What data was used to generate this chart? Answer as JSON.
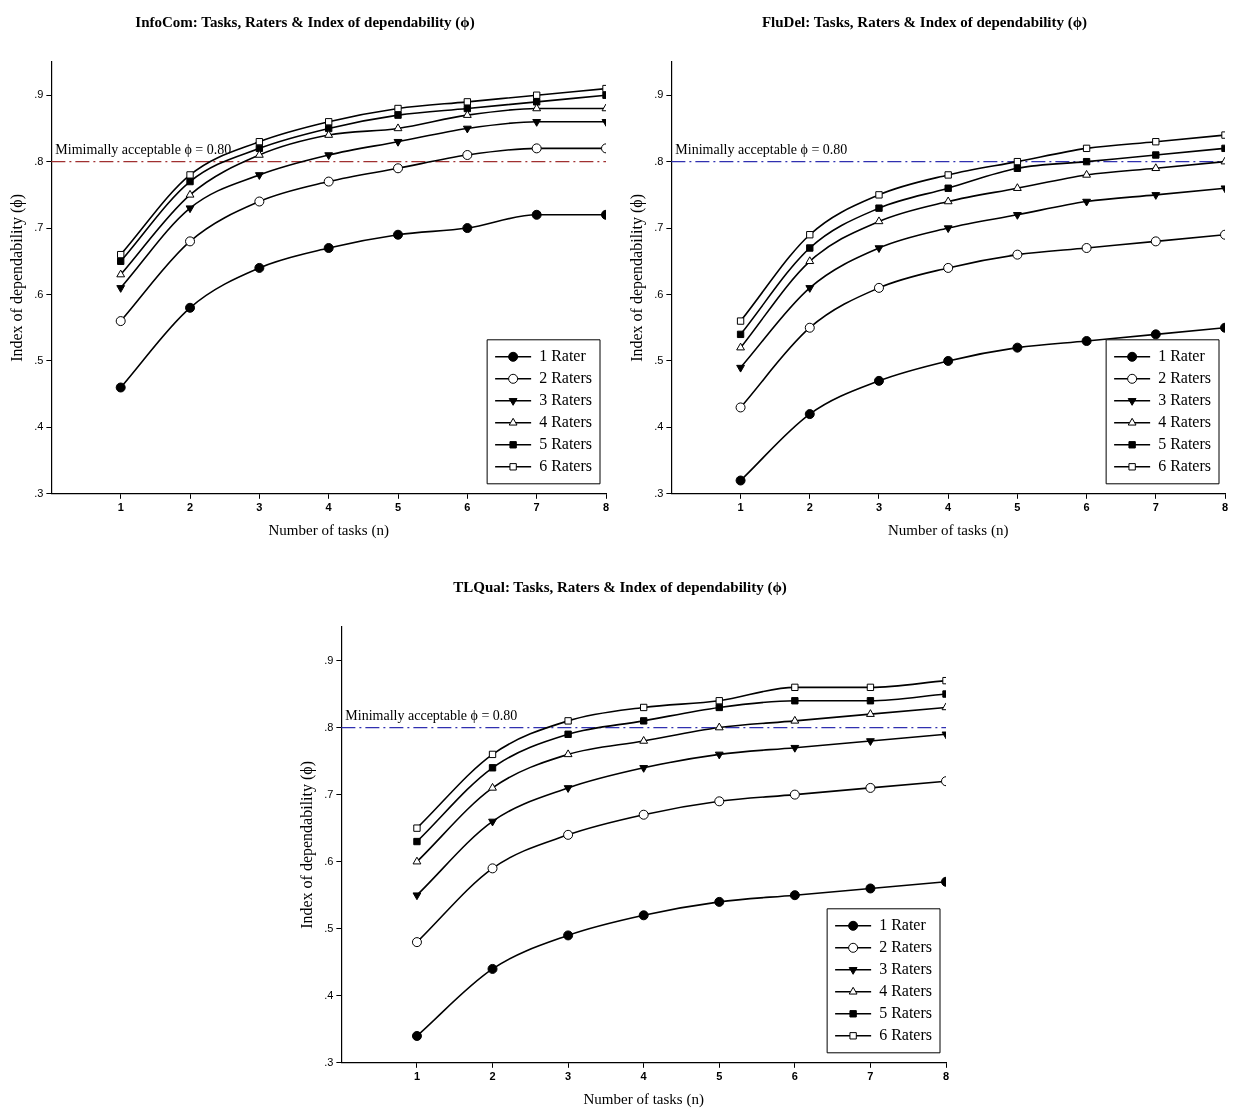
{
  "chart_data": [
    {
      "type": "line",
      "title": "InfoCom: Tasks, Raters & Index of dependability (ϕ)",
      "xlabel": "Number of tasks (n)",
      "ylabel": "Index of dependability (ϕ)",
      "x": [
        1,
        2,
        3,
        4,
        5,
        6,
        7,
        8
      ],
      "xlim": [
        0,
        8
      ],
      "xticks": [
        1,
        2,
        3,
        4,
        5,
        6,
        7,
        8
      ],
      "ylim": [
        0.3,
        0.95
      ],
      "yticks": [
        {
          "value": 0.3,
          "label": ".3"
        },
        {
          "value": 0.4,
          "label": ".4"
        },
        {
          "value": 0.5,
          "label": ".5"
        },
        {
          "value": 0.6,
          "label": ".6"
        },
        {
          "value": 0.7,
          "label": ".7"
        },
        {
          "value": 0.8,
          "label": ".8"
        },
        {
          "value": 0.9,
          "label": ".9"
        }
      ],
      "grid": false,
      "legend": "bottom right",
      "ref_lines": [
        {
          "axis": "y",
          "value": 0.8,
          "label": "Mimimally acceptable ϕ = 0.80",
          "color": "#a03030",
          "line_style": "dashed"
        }
      ],
      "series": [
        {
          "name": "1 Rater",
          "color": "#000000",
          "marker": "circle",
          "values": [
            0.46,
            0.58,
            0.64,
            0.67,
            0.69,
            0.7,
            0.72,
            0.72
          ]
        },
        {
          "name": "2 Raters",
          "color": "#000000",
          "marker": "circle-open",
          "values": [
            0.56,
            0.68,
            0.74,
            0.77,
            0.79,
            0.81,
            0.82,
            0.82
          ]
        },
        {
          "name": "3 Raters",
          "color": "#000000",
          "marker": "triangle-down",
          "values": [
            0.61,
            0.73,
            0.78,
            0.81,
            0.83,
            0.85,
            0.86,
            0.86
          ]
        },
        {
          "name": "4 Raters",
          "color": "#000000",
          "marker": "triangle-open",
          "values": [
            0.63,
            0.75,
            0.81,
            0.84,
            0.85,
            0.87,
            0.88,
            0.88
          ]
        },
        {
          "name": "5 Raters",
          "color": "#000000",
          "marker": "square",
          "values": [
            0.65,
            0.77,
            0.82,
            0.85,
            0.87,
            0.88,
            0.89,
            0.9
          ]
        },
        {
          "name": "6 Raters",
          "color": "#000000",
          "marker": "square-open",
          "values": [
            0.66,
            0.78,
            0.83,
            0.86,
            0.88,
            0.89,
            0.9,
            0.91
          ]
        }
      ]
    },
    {
      "type": "line",
      "title": "FluDel: Tasks, Raters & Index of dependability (ϕ)",
      "xlabel": "Number of tasks (n)",
      "ylabel": "Index of dependability (ϕ)",
      "x": [
        1,
        2,
        3,
        4,
        5,
        6,
        7,
        8
      ],
      "xlim": [
        0,
        8
      ],
      "xticks": [
        1,
        2,
        3,
        4,
        5,
        6,
        7,
        8
      ],
      "ylim": [
        0.3,
        0.95
      ],
      "yticks": [
        {
          "value": 0.3,
          "label": ".3"
        },
        {
          "value": 0.4,
          "label": ".4"
        },
        {
          "value": 0.5,
          "label": ".5"
        },
        {
          "value": 0.6,
          "label": ".6"
        },
        {
          "value": 0.7,
          "label": ".7"
        },
        {
          "value": 0.8,
          "label": ".8"
        },
        {
          "value": 0.9,
          "label": ".9"
        }
      ],
      "grid": false,
      "legend": "bottom right",
      "ref_lines": [
        {
          "axis": "y",
          "value": 0.8,
          "label": "Minimally acceptable ϕ = 0.80",
          "color": "#3030b0",
          "line_style": "dashed"
        }
      ],
      "series": [
        {
          "name": "1 Rater",
          "color": "#000000",
          "marker": "circle",
          "values": [
            0.32,
            0.42,
            0.47,
            0.5,
            0.52,
            0.53,
            0.54,
            0.55
          ]
        },
        {
          "name": "2 Raters",
          "color": "#000000",
          "marker": "circle-open",
          "values": [
            0.43,
            0.55,
            0.61,
            0.64,
            0.66,
            0.67,
            0.68,
            0.69
          ]
        },
        {
          "name": "3 Raters",
          "color": "#000000",
          "marker": "triangle-down",
          "values": [
            0.49,
            0.61,
            0.67,
            0.7,
            0.72,
            0.74,
            0.75,
            0.76
          ]
        },
        {
          "name": "4 Raters",
          "color": "#000000",
          "marker": "triangle-open",
          "values": [
            0.52,
            0.65,
            0.71,
            0.74,
            0.76,
            0.78,
            0.79,
            0.8
          ]
        },
        {
          "name": "5 Raters",
          "color": "#000000",
          "marker": "square",
          "values": [
            0.54,
            0.67,
            0.73,
            0.76,
            0.79,
            0.8,
            0.81,
            0.82
          ]
        },
        {
          "name": "6 Raters",
          "color": "#000000",
          "marker": "square-open",
          "values": [
            0.56,
            0.69,
            0.75,
            0.78,
            0.8,
            0.82,
            0.83,
            0.84
          ]
        }
      ]
    },
    {
      "type": "line",
      "title": "TLQual: Tasks, Raters & Index of dependability (ϕ)",
      "xlabel": "Number of tasks (n)",
      "ylabel": "Index of dependability (ϕ)",
      "x": [
        1,
        2,
        3,
        4,
        5,
        6,
        7,
        8
      ],
      "xlim": [
        0,
        8
      ],
      "xticks": [
        1,
        2,
        3,
        4,
        5,
        6,
        7,
        8
      ],
      "ylim": [
        0.3,
        0.95
      ],
      "yticks": [
        {
          "value": 0.3,
          "label": ".3"
        },
        {
          "value": 0.4,
          "label": ".4"
        },
        {
          "value": 0.5,
          "label": ".5"
        },
        {
          "value": 0.6,
          "label": ".6"
        },
        {
          "value": 0.7,
          "label": ".7"
        },
        {
          "value": 0.8,
          "label": ".8"
        },
        {
          "value": 0.9,
          "label": ".9"
        }
      ],
      "grid": false,
      "legend": "bottom right",
      "ref_lines": [
        {
          "axis": "y",
          "value": 0.8,
          "label": "Minimally acceptable ϕ = 0.80",
          "color": "#3030b0",
          "line_style": "dashed"
        }
      ],
      "series": [
        {
          "name": "1 Rater",
          "color": "#000000",
          "marker": "circle",
          "values": [
            0.34,
            0.44,
            0.49,
            0.52,
            0.54,
            0.55,
            0.56,
            0.57
          ]
        },
        {
          "name": "2 Raters",
          "color": "#000000",
          "marker": "circle-open",
          "values": [
            0.48,
            0.59,
            0.64,
            0.67,
            0.69,
            0.7,
            0.71,
            0.72
          ]
        },
        {
          "name": "3 Raters",
          "color": "#000000",
          "marker": "triangle-down",
          "values": [
            0.55,
            0.66,
            0.71,
            0.74,
            0.76,
            0.77,
            0.78,
            0.79
          ]
        },
        {
          "name": "4 Raters",
          "color": "#000000",
          "marker": "triangle-open",
          "values": [
            0.6,
            0.71,
            0.76,
            0.78,
            0.8,
            0.81,
            0.82,
            0.83
          ]
        },
        {
          "name": "5 Raters",
          "color": "#000000",
          "marker": "square",
          "values": [
            0.63,
            0.74,
            0.79,
            0.81,
            0.83,
            0.84,
            0.84,
            0.85
          ]
        },
        {
          "name": "6 Raters",
          "color": "#000000",
          "marker": "square-open",
          "values": [
            0.65,
            0.76,
            0.81,
            0.83,
            0.84,
            0.86,
            0.86,
            0.87
          ]
        }
      ]
    }
  ]
}
